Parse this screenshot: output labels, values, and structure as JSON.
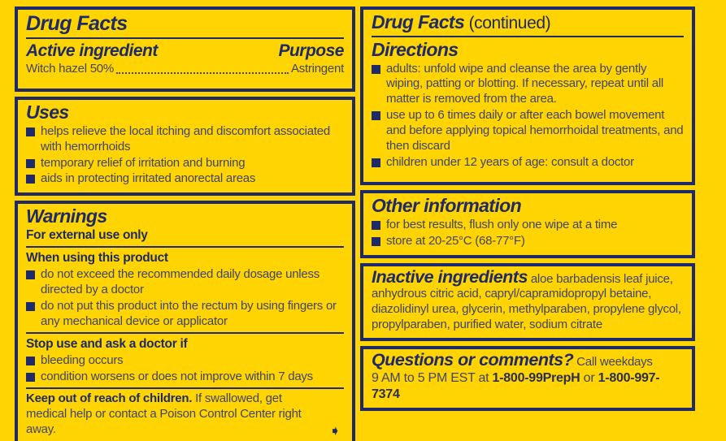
{
  "colors": {
    "background": "#FFD400",
    "navy": "#1F2A6B",
    "body_text": "#41456A"
  },
  "left_column": {
    "drug_facts": {
      "title": "Drug Facts",
      "active_ingredient_heading": "Active ingredient",
      "purpose_heading": "Purpose",
      "ingredient_name": "Witch hazel 50%",
      "purpose_value": "Astringent"
    },
    "uses": {
      "title": "Uses",
      "bullets": [
        "helps relieve the local itching and discomfort associated with hemorrhoids",
        "temporary relief of irritation and burning",
        "aids in protecting irritated anorectal areas"
      ]
    },
    "warnings": {
      "title": "Warnings",
      "external_use": "For external use only",
      "when_using_heading": "When using this product",
      "when_using_bullets": [
        "do not exceed the recommended daily dosage unless directed by a doctor",
        "do not put this product into the rectum by using fingers or any mechanical device or applicator"
      ],
      "stop_use_heading": "Stop use and ask a doctor if",
      "stop_use_bullets": [
        "bleeding occurs",
        "condition worsens or does not improve within 7 days"
      ],
      "keep_out_bold": "Keep out of reach of children.",
      "keep_out_text": " If swallowed, get medical help or contact a Poison Control Center right away.",
      "arrow_glyph": "➧"
    }
  },
  "right_column": {
    "continued": {
      "title": "Drug Facts",
      "suffix": " (continued)"
    },
    "directions": {
      "title": "Directions",
      "bullets": [
        "adults: unfold wipe and cleanse the area by gently wiping, patting or blotting. If necessary, repeat until all matter is removed from the area.",
        "use up to 6 times daily or after each bowel movement and before applying topical hemorrhoidal treatments, and then discard",
        "children under 12 years of age: consult a doctor"
      ]
    },
    "other_information": {
      "title": "Other information",
      "bullets": [
        "for best results, flush only one wipe at a time",
        "store at 20-25°C (68-77°F)"
      ]
    },
    "inactive_ingredients": {
      "title": "Inactive ingredients",
      "text": " aloe barbadensis leaf juice, anhydrous citric acid, capryl/capramidopropyl betaine, diazolidinyl urea, glycerin, methylparaben, propylene glycol, propylparaben, purified water, sodium citrate"
    },
    "questions": {
      "title": "Questions or comments?",
      "call_text": " Call weekdays",
      "line2_prefix": "9 AM to 5 PM EST at ",
      "phone1": "1-800-99PrepH",
      "or_text": " or ",
      "phone2": "1-800-997-7374"
    }
  }
}
